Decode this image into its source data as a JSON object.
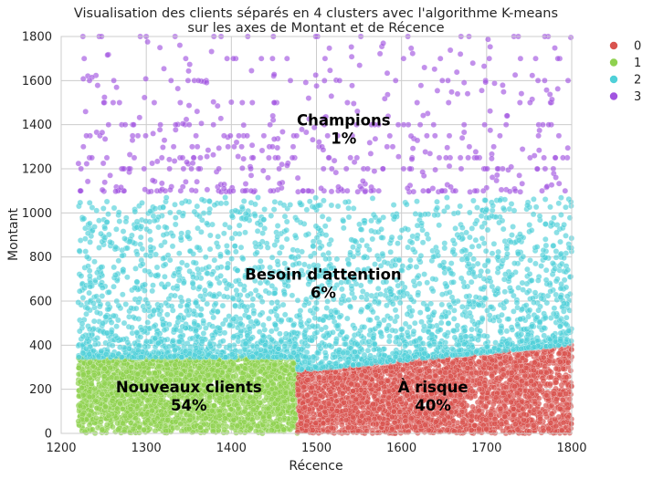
{
  "chart_data": {
    "type": "scatter",
    "title": [
      "Visualisation des clients séparés en 4 clusters avec l'algorithme K-means",
      "sur les axes de Montant et de Récence"
    ],
    "xlabel": "Récence",
    "ylabel": "Montant",
    "xlim": [
      1200,
      1800
    ],
    "ylim": [
      0,
      1800
    ],
    "xticks": [
      1200,
      1300,
      1400,
      1500,
      1600,
      1700,
      1800
    ],
    "yticks": [
      0,
      200,
      400,
      600,
      800,
      1000,
      1200,
      1400,
      1600,
      1800
    ],
    "grid": true,
    "legend_position": "right",
    "series": [
      {
        "name": "0",
        "color": "#d9534f",
        "x_range": [
          1478,
          1800
        ],
        "y_range": [
          0,
          410
        ]
      },
      {
        "name": "1",
        "color": "#8fd14f",
        "x_range": [
          1220,
          1478
        ],
        "y_range": [
          0,
          350
        ]
      },
      {
        "name": "2",
        "color": "#4fd0d8",
        "x_range": [
          1220,
          1800
        ],
        "y_range": [
          290,
          1090
        ]
      },
      {
        "name": "3",
        "color": "#a154e0",
        "x_range": [
          1220,
          1800
        ],
        "y_range": [
          1090,
          1800
        ]
      }
    ],
    "annotations": [
      {
        "line1": "Champions",
        "line2": "1%",
        "x": 1532,
        "y": 1380
      },
      {
        "line1": "Besoin d'attention",
        "line2": "6%",
        "x": 1508,
        "y": 680
      },
      {
        "line1": "Nouveaux clients",
        "line2": "54%",
        "x": 1350,
        "y": 170
      },
      {
        "line1": "À risque",
        "line2": "40%",
        "x": 1637,
        "y": 170
      }
    ]
  }
}
